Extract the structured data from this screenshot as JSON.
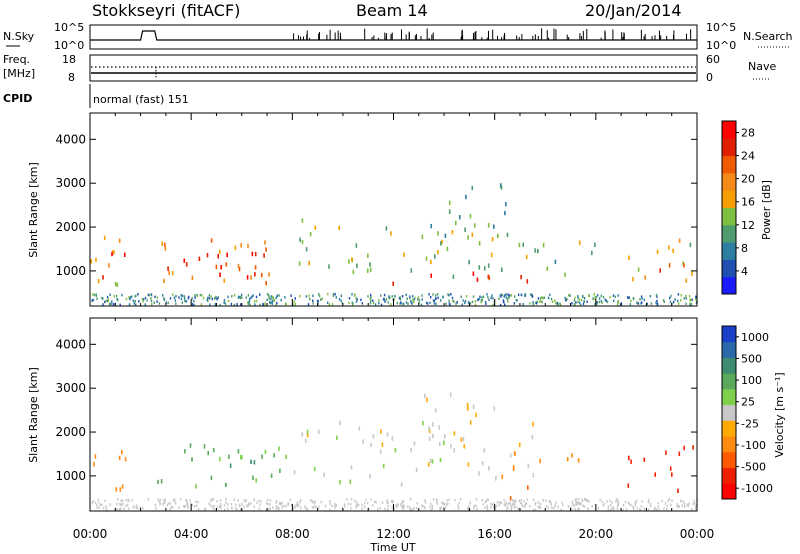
{
  "header": {
    "radar": "Stokkseyri (fitACF)",
    "beam": "Beam 14",
    "date": "20/Jan/2014"
  },
  "strip_labels": {
    "nsky": "N.Sky",
    "nsky_top": "10^5",
    "nsky_bottom": "10^0",
    "nsearch": "N.Search",
    "nsearch_top": "10^5",
    "nsearch_bottom": "10^0",
    "freq_line1": "Freq.",
    "freq_line2": "[MHz]",
    "freq_top": "18",
    "freq_bottom": "8",
    "nave": "Nave",
    "nave_top": "60",
    "nave_bottom": "0",
    "cpid": "CPID",
    "mode": "normal (fast) 151"
  },
  "colors": {
    "power_scale": [
      "#1a1aff",
      "#1f4fb0",
      "#2d7ea0",
      "#4e9b6e",
      "#7fbf40",
      "#f5a000",
      "#f58a1a",
      "#f05a00",
      "#e02000",
      "#ff0000"
    ],
    "velocity_scale": [
      "#1a40c8",
      "#2a6aa8",
      "#3e8c70",
      "#5aa85a",
      "#7fd04a",
      "#c8c8c8",
      "#ffaa00",
      "#ff8a10",
      "#ff5a00",
      "#ee2000",
      "#ff0000"
    ]
  },
  "chart_data": [
    {
      "type": "heatmap",
      "name": "power",
      "ylabel": "Slant Range [km]",
      "xlabel": "",
      "ylim": [
        200,
        4600
      ],
      "yticks": [
        "1000",
        "2000",
        "3000",
        "4000"
      ],
      "xticks": [
        "00:00",
        "04:00",
        "08:00",
        "12:00",
        "16:00",
        "20:00",
        "00:00"
      ],
      "colorbar": {
        "label": "Power [dB]",
        "ticks": [
          "4",
          "8",
          "12",
          "16",
          "20",
          "24",
          "28"
        ],
        "range": [
          0,
          30
        ]
      },
      "regions": [
        {
          "t0": 0.0,
          "t1": 2.1,
          "r0": 650,
          "r1": 1900,
          "level": 18
        },
        {
          "t0": 0.3,
          "t1": 1.6,
          "r0": 850,
          "r1": 1500,
          "level": 25
        },
        {
          "t0": 2.3,
          "t1": 7.8,
          "r0": 700,
          "r1": 1800,
          "level": 20
        },
        {
          "t0": 2.8,
          "t1": 7.0,
          "r0": 850,
          "r1": 1500,
          "level": 26
        },
        {
          "t0": 5.0,
          "t1": 7.0,
          "r0": 900,
          "r1": 1450,
          "level": 29
        },
        {
          "t0": 8.0,
          "t1": 17.5,
          "r0": 900,
          "r1": 2300,
          "level": 13
        },
        {
          "t0": 10.5,
          "t1": 17.8,
          "r0": 700,
          "r1": 1000,
          "level": 27
        },
        {
          "t0": 13.0,
          "t1": 16.5,
          "r0": 1800,
          "r1": 3000,
          "level": 11
        },
        {
          "t0": 17.5,
          "t1": 20.5,
          "r0": 900,
          "r1": 1700,
          "level": 12
        },
        {
          "t0": 21.0,
          "t1": 24.0,
          "r0": 800,
          "r1": 1800,
          "level": 15
        },
        {
          "t0": 22.5,
          "t1": 24.0,
          "r0": 950,
          "r1": 1400,
          "level": 24
        }
      ]
    },
    {
      "type": "heatmap",
      "name": "velocity",
      "ylabel": "Slant Range [km]",
      "xlabel": "Time UT",
      "ylim": [
        200,
        4600
      ],
      "yticks": [
        "1000",
        "2000",
        "3000",
        "4000"
      ],
      "xticks": [
        "00:00",
        "04:00",
        "08:00",
        "12:00",
        "16:00",
        "20:00",
        "00:00"
      ],
      "colorbar": {
        "label": "Velocity [m s⁻¹]",
        "ticks": [
          "1000",
          "500",
          "100",
          "25",
          "-25",
          "-100",
          "-500",
          "-1000"
        ]
      },
      "regions": [
        {
          "t0": 0.0,
          "t1": 2.1,
          "r0": 700,
          "r1": 1700,
          "level": -200
        },
        {
          "t0": 2.3,
          "t1": 7.8,
          "r0": 700,
          "r1": 1750,
          "level": 120
        },
        {
          "t0": 4.5,
          "t1": 7.0,
          "r0": 800,
          "r1": 1400,
          "level": 300
        },
        {
          "t0": 8.0,
          "t1": 17.5,
          "r0": 800,
          "r1": 2300,
          "level": 0
        },
        {
          "t0": 13.0,
          "t1": 16.5,
          "r0": 1800,
          "r1": 3000,
          "level": 0
        },
        {
          "t0": 16.5,
          "t1": 18.0,
          "r0": 500,
          "r1": 900,
          "level": -400
        },
        {
          "t0": 16.0,
          "t1": 19.5,
          "r0": 1000,
          "r1": 1700,
          "level": -200
        },
        {
          "t0": 21.0,
          "t1": 24.0,
          "r0": 700,
          "r1": 1700,
          "level": -600
        }
      ]
    }
  ]
}
